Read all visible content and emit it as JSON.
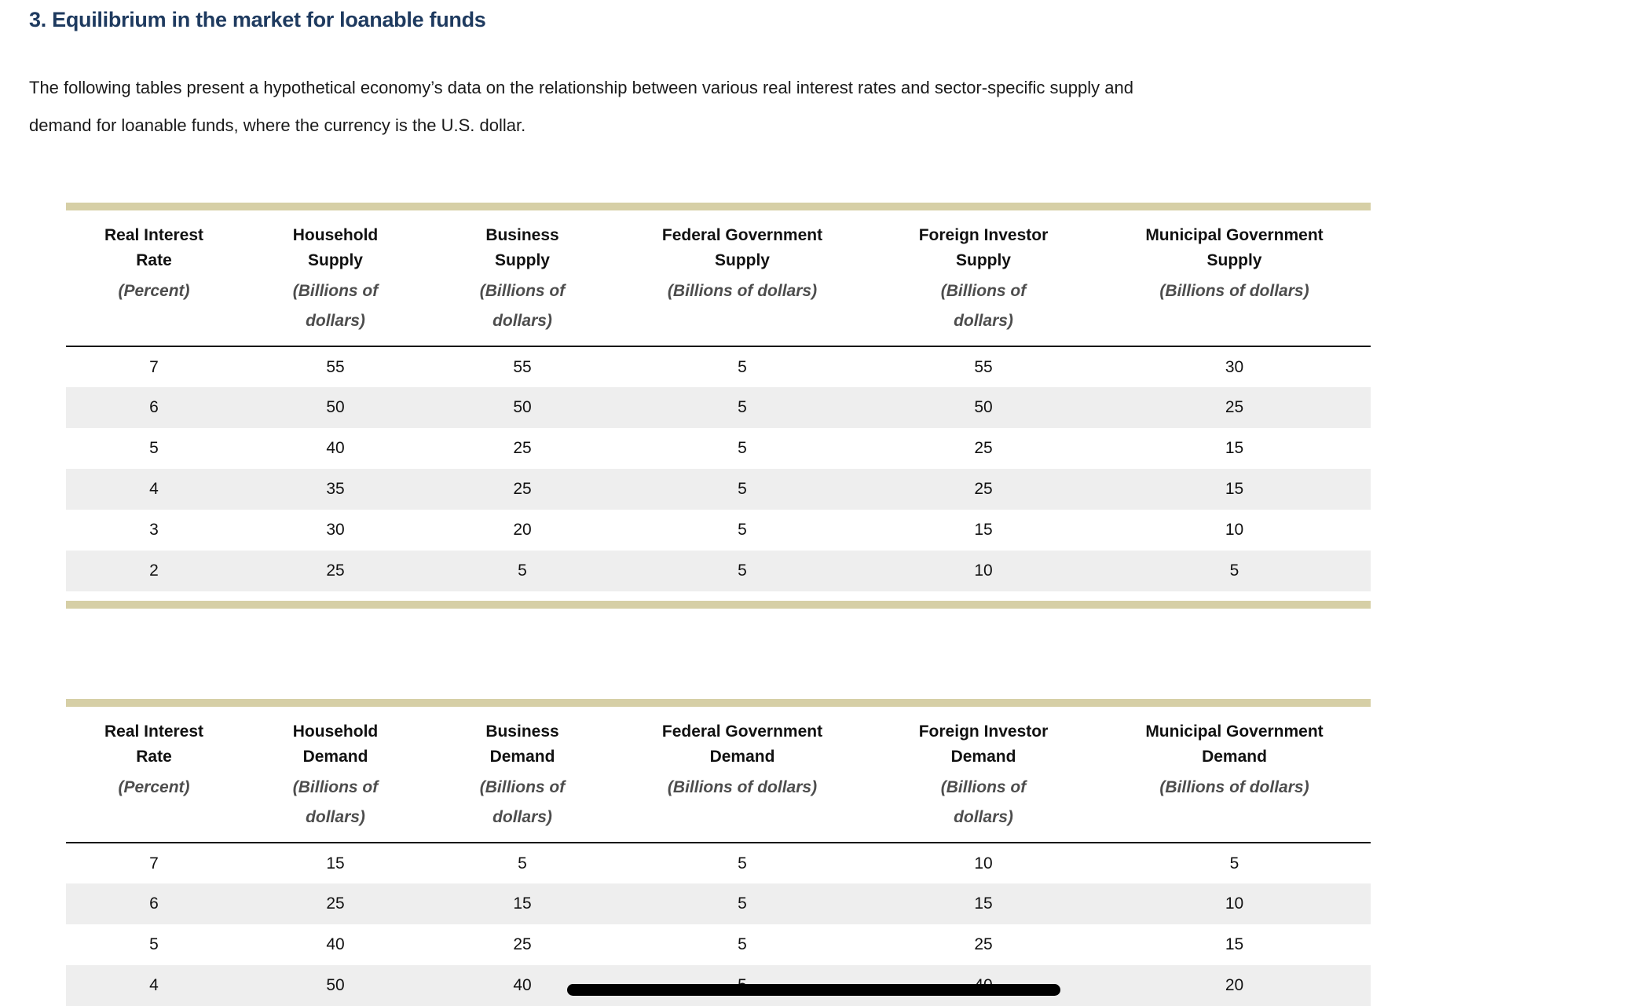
{
  "heading": "3. Equilibrium in the market for loanable funds",
  "intro": {
    "lines": [
      "The following tables present a hypothetical economy’s data on the relationship between various real interest rates and sector-specific supply and",
      "demand for loanable funds, where the currency is the U.S. dollar."
    ]
  },
  "colors": {
    "heading": "#1e3a5f",
    "table_accent_bar": "#d6cfa6",
    "row_stripe": "#eeeeee",
    "redaction_bar": "#000000"
  },
  "supply_table": {
    "columns": [
      {
        "title_lines": [
          "Real Interest",
          "Rate"
        ],
        "unit_lines": [
          "(Percent)"
        ]
      },
      {
        "title_lines": [
          "Household",
          "Supply"
        ],
        "unit_lines": [
          "(Billions of",
          "dollars)"
        ]
      },
      {
        "title_lines": [
          "Business",
          "Supply"
        ],
        "unit_lines": [
          "(Billions of",
          "dollars)"
        ]
      },
      {
        "title_lines": [
          "Federal Government",
          "Supply"
        ],
        "unit_lines": [
          "(Billions of dollars)"
        ]
      },
      {
        "title_lines": [
          "Foreign Investor",
          "Supply"
        ],
        "unit_lines": [
          "(Billions of",
          "dollars)"
        ]
      },
      {
        "title_lines": [
          "Municipal Government",
          "Supply"
        ],
        "unit_lines": [
          "(Billions of dollars)"
        ]
      }
    ],
    "rows": [
      [
        "7",
        "55",
        "55",
        "5",
        "55",
        "30"
      ],
      [
        "6",
        "50",
        "50",
        "5",
        "50",
        "25"
      ],
      [
        "5",
        "40",
        "25",
        "5",
        "25",
        "15"
      ],
      [
        "4",
        "35",
        "25",
        "5",
        "25",
        "15"
      ],
      [
        "3",
        "30",
        "20",
        "5",
        "15",
        "10"
      ],
      [
        "2",
        "25",
        "5",
        "5",
        "10",
        "5"
      ]
    ]
  },
  "demand_table": {
    "columns": [
      {
        "title_lines": [
          "Real Interest",
          "Rate"
        ],
        "unit_lines": [
          "(Percent)"
        ]
      },
      {
        "title_lines": [
          "Household",
          "Demand"
        ],
        "unit_lines": [
          "(Billions of",
          "dollars)"
        ]
      },
      {
        "title_lines": [
          "Business",
          "Demand"
        ],
        "unit_lines": [
          "(Billions of",
          "dollars)"
        ]
      },
      {
        "title_lines": [
          "Federal Government",
          "Demand"
        ],
        "unit_lines": [
          "(Billions of dollars)"
        ]
      },
      {
        "title_lines": [
          "Foreign Investor",
          "Demand"
        ],
        "unit_lines": [
          "(Billions of",
          "dollars)"
        ]
      },
      {
        "title_lines": [
          "Municipal Government",
          "Demand"
        ],
        "unit_lines": [
          "(Billions of dollars)"
        ]
      }
    ],
    "rows": [
      [
        "7",
        "15",
        "5",
        "5",
        "10",
        "5"
      ],
      [
        "6",
        "25",
        "15",
        "5",
        "15",
        "10"
      ],
      [
        "5",
        "40",
        "25",
        "5",
        "25",
        "15"
      ],
      [
        "4",
        "50",
        "40",
        "5",
        "40",
        "20"
      ]
    ]
  }
}
